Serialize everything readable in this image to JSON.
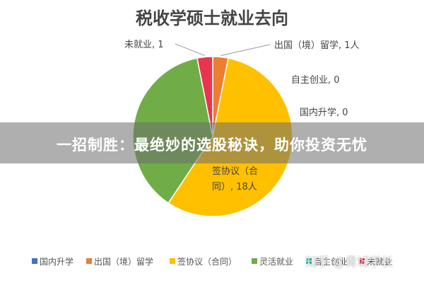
{
  "chart_data": {
    "type": "pie",
    "title": "税收学硕士就业去向",
    "slices": [
      {
        "name": "国内升学",
        "value": 0,
        "label": "国内升学, 0",
        "color": "#4472c4"
      },
      {
        "name": "出国（境）留学",
        "value": 1,
        "label": "出国（境）留学, 1人",
        "color": "#ed7d31"
      },
      {
        "name": "签协议（合同）",
        "value": 18,
        "label": "签协议（合同）, 18人",
        "color": "#ffc000"
      },
      {
        "name": "灵活就业",
        "value": 12,
        "color": "#70ad47"
      },
      {
        "name": "自主创业",
        "value": 0,
        "label": "自主创业, 0",
        "color": "#2ec4b6"
      },
      {
        "name": "未就业",
        "value": 1,
        "label": "未就业, 1",
        "color": "#e8344e"
      }
    ],
    "legend": {
      "position": "bottom",
      "items": [
        "国内升学",
        "出国（境）留学",
        "签协议（合同）",
        "灵活就业",
        "自主创业",
        "未就业"
      ]
    }
  },
  "banner": {
    "text": "一招制胜：最绝妙的选股秘诀，助你投资无忧"
  },
  "watermark": {
    "text": "知乎 @青城学长"
  }
}
